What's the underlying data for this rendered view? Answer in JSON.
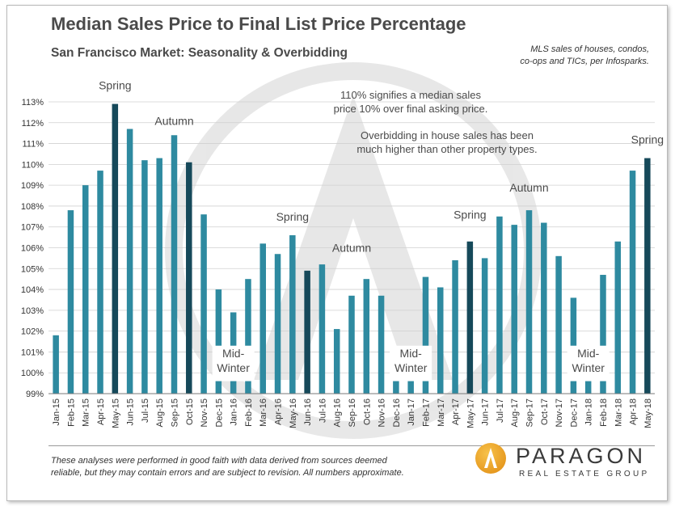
{
  "header": {
    "title": "Median Sales Price to Final List Price Percentage",
    "subtitle": "San Francisco Market: Seasonality & Overbidding",
    "source_line1": "MLS sales of houses, condos,",
    "source_line2": "co-ops and TICs, per Infosparks."
  },
  "notes": {
    "note1_line1": "110% signifies a median sales",
    "note1_line2": "price 10% over final asking price.",
    "note2_line1": "Overbidding in house sales has been",
    "note2_line2": "much higher than other property types."
  },
  "season_labels": [
    {
      "text": "Spring",
      "index": 4,
      "value": 113.6
    },
    {
      "text": "Autumn",
      "index": 8,
      "value": 111.9
    },
    {
      "text": "Spring",
      "index": 16,
      "value": 107.3
    },
    {
      "text": "Autumn",
      "index": 20,
      "value": 105.8
    },
    {
      "text": "Spring",
      "index": 28,
      "value": 107.4
    },
    {
      "text": "Autumn",
      "index": 32,
      "value": 108.7
    },
    {
      "text": "Spring",
      "index": 40,
      "value": 111.0
    }
  ],
  "midwinter_labels": [
    {
      "line1": "Mid-",
      "line2": "Winter",
      "index": 12
    },
    {
      "line1": "Mid-",
      "line2": "Winter",
      "index": 24
    },
    {
      "line1": "Mid-",
      "line2": "Winter",
      "index": 36
    }
  ],
  "footer": {
    "disclaimer_line1": "These analyses were performed in good faith with data derived from sources deemed",
    "disclaimer_line2": "reliable, but they may contain errors and are subject to revision. All numbers approximate."
  },
  "logo": {
    "name": "PARAGON",
    "tagline": "REAL ESTATE GROUP"
  },
  "colors": {
    "bar_main": "#2e8aa0",
    "bar_highlight": "#16495a",
    "text": "#4a4a4a",
    "grid": "#d0d0d0"
  },
  "chart_data": {
    "type": "bar",
    "title": "Median Sales Price to Final List Price Percentage",
    "subtitle": "San Francisco Market: Seasonality & Overbidding",
    "ylim": [
      99,
      113
    ],
    "y_ticks": [
      "99%",
      "100%",
      "101%",
      "102%",
      "103%",
      "104%",
      "105%",
      "106%",
      "107%",
      "108%",
      "109%",
      "110%",
      "111%",
      "112%",
      "113%"
    ],
    "grid": true,
    "categories": [
      "Jan-15",
      "Feb-15",
      "Mar-15",
      "Apr-15",
      "May-15",
      "Jun-15",
      "Jul-15",
      "Aug-15",
      "Sep-15",
      "Oct-15",
      "Nov-15",
      "Dec-15",
      "Jan-16",
      "Feb-16",
      "Mar-16",
      "Apr-16",
      "May-16",
      "Jun-16",
      "Jul-16",
      "Aug-16",
      "Sep-16",
      "Oct-16",
      "Nov-16",
      "Dec-16",
      "Jan-17",
      "Feb-17",
      "Mar-17",
      "Apr-17",
      "May-17",
      "Jun-17",
      "Jul-17",
      "Aug-17",
      "Sep-17",
      "Oct-17",
      "Nov-17",
      "Dec-17",
      "Jan-18",
      "Feb-18",
      "Mar-18",
      "Apr-18",
      "May-18"
    ],
    "values": [
      101.8,
      107.8,
      109.0,
      109.7,
      112.9,
      111.7,
      110.2,
      110.3,
      111.4,
      110.1,
      107.6,
      104.0,
      102.9,
      104.5,
      106.2,
      105.7,
      106.6,
      104.9,
      105.2,
      102.1,
      103.7,
      104.5,
      103.7,
      100.8,
      100.0,
      104.6,
      104.1,
      105.4,
      106.3,
      105.5,
      107.5,
      107.1,
      107.8,
      107.2,
      105.6,
      103.6,
      99.6,
      104.7,
      106.3,
      109.7,
      110.3
    ],
    "highlight_indices": [
      4,
      9,
      17,
      28,
      40
    ]
  }
}
